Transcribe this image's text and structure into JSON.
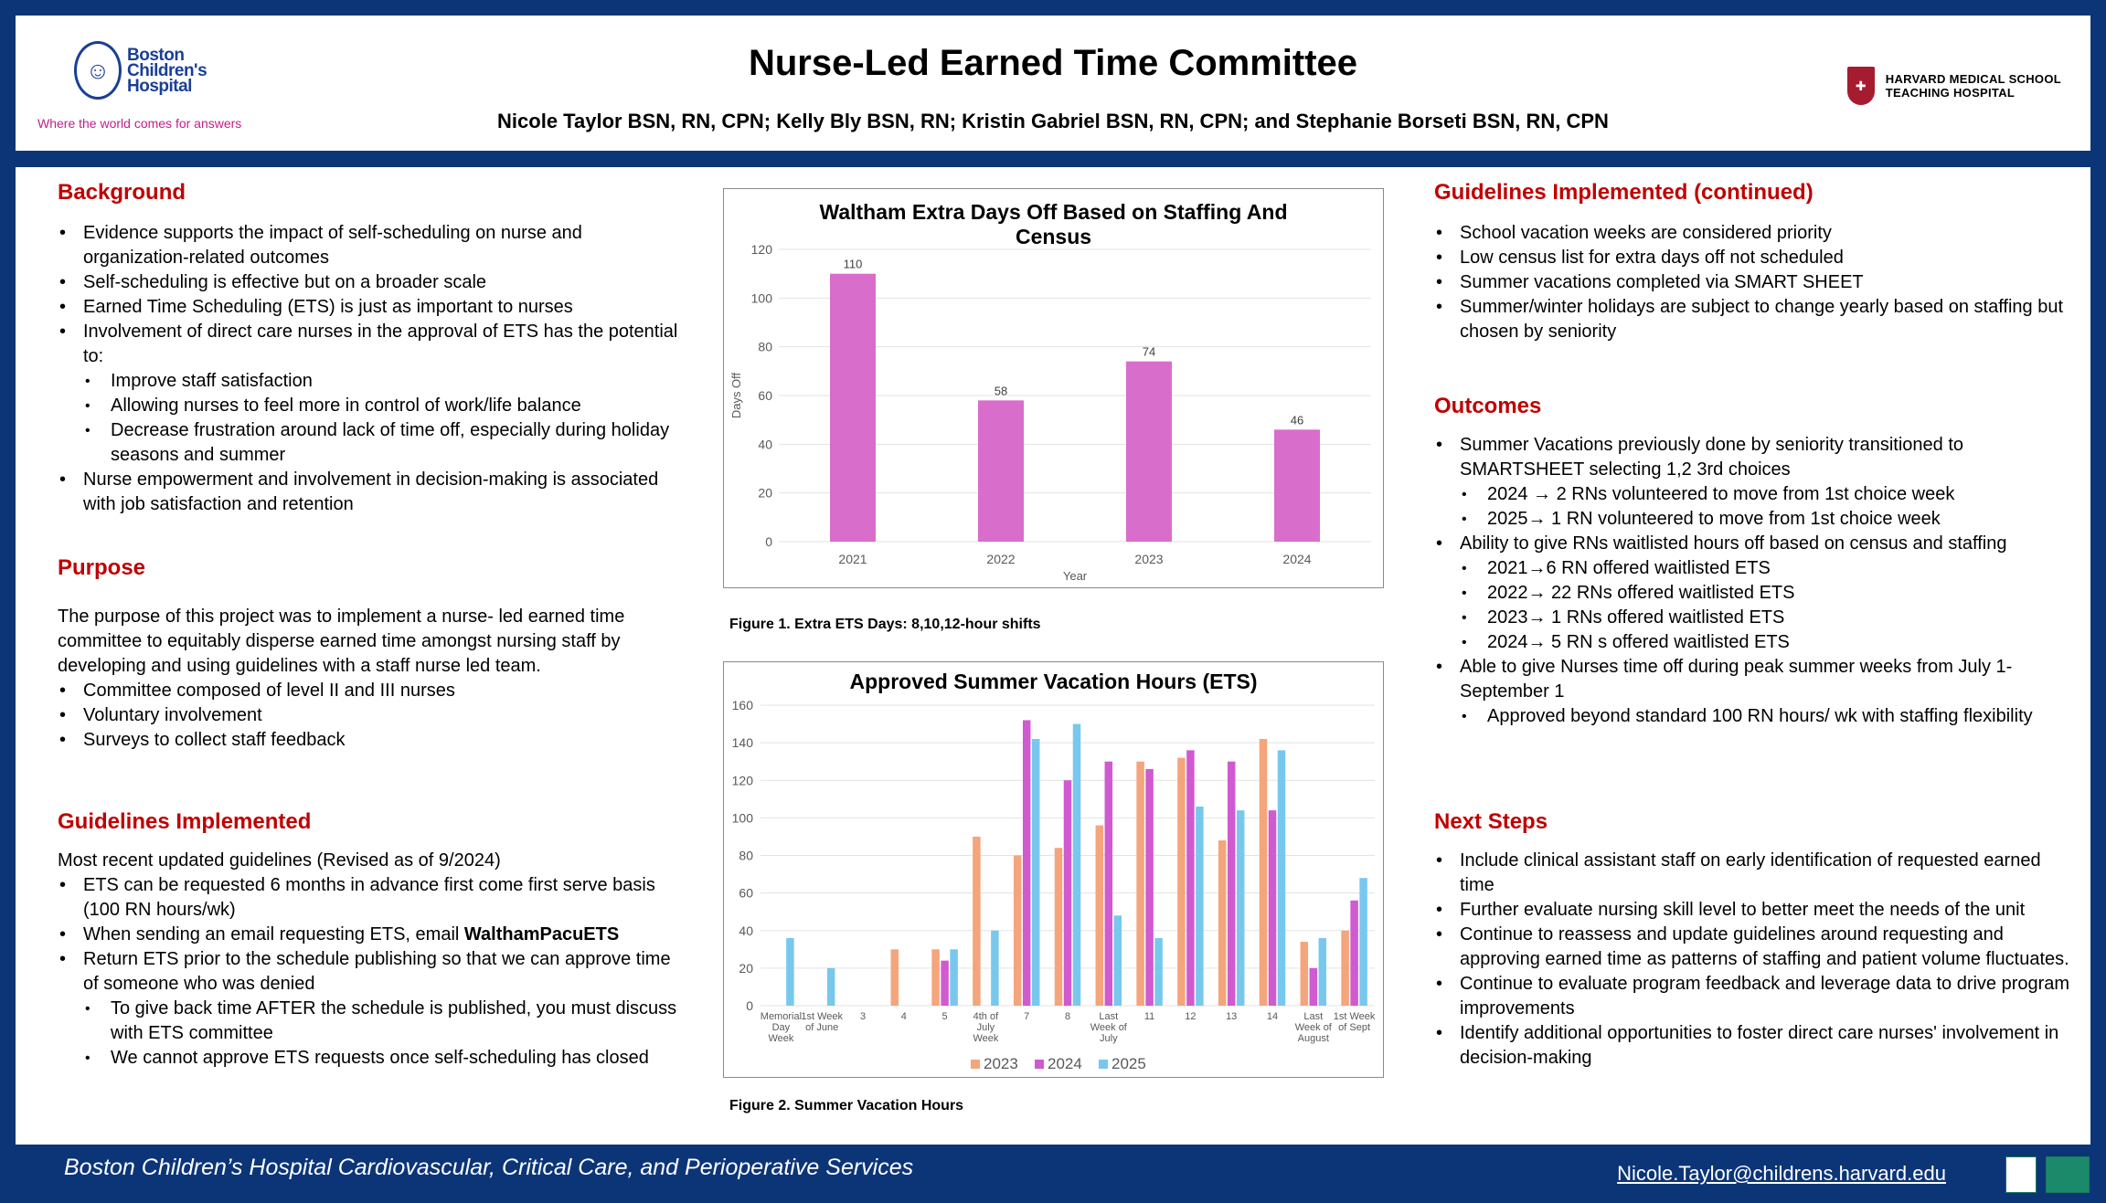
{
  "header": {
    "title": "Nurse-Led Earned Time Committee",
    "authors": "Nicole Taylor BSN, RN, CPN; Kelly Bly BSN, RN; Kristin Gabriel BSN, RN, CPN; and Stephanie Borseti BSN, RN, CPN",
    "logo_left": [
      "Boston",
      "Children's",
      "Hospital"
    ],
    "logo_tagline": "Where the world comes for answers",
    "logo_right": [
      "HARVARD MEDICAL SCHOOL",
      "TEACHING HOSPITAL"
    ]
  },
  "background": {
    "heading": "Background",
    "items": [
      "Evidence supports the impact of self-scheduling on nurse and organization-related outcomes",
      "Self-scheduling is effective but on a broader scale",
      "Earned Time Scheduling (ETS) is just as important to nurses",
      "Involvement of direct care nurses in the approval of ETS has the potential to:"
    ],
    "subitems": [
      "Improve staff satisfaction",
      "Allowing nurses to feel more in control of work/life balance",
      "Decrease frustration around lack of time off, especially during holiday seasons and summer"
    ],
    "last_item": "Nurse empowerment and involvement in decision-making is associated with job satisfaction and retention"
  },
  "purpose": {
    "heading": "Purpose",
    "text": "The purpose of this project was to implement a nurse- led earned time committee to equitably disperse earned time amongst nursing staff by developing and using guidelines with a staff nurse led team.",
    "items": [
      "Committee composed of level II and III nurses",
      "Voluntary involvement",
      "Surveys to collect staff feedback"
    ]
  },
  "guidelines": {
    "heading": "Guidelines Implemented",
    "intro": "Most recent updated guidelines (Revised as of 9/2024)",
    "item1": "ETS can be requested 6 months in advance first come first serve basis (100 RN hours/wk)",
    "item2_pre": "When sending an email requesting ETS, email ",
    "item2_bold": "WalthamPacuETS",
    "item3": "Return ETS prior to the schedule publishing so that we can approve time of someone who was denied",
    "subitems": [
      "To give back time AFTER the schedule is published, you must discuss with ETS committee",
      "We cannot approve ETS requests once self-scheduling has closed"
    ]
  },
  "guidelines_cont": {
    "heading": "Guidelines Implemented (continued)",
    "items": [
      "School vacation weeks are considered priority",
      "Low census list for extra days off not scheduled",
      "Summer vacations completed via SMART SHEET",
      "Summer/winter holidays are subject to change yearly based on staffing but chosen by seniority"
    ]
  },
  "outcomes": {
    "heading": "Outcomes",
    "item1": "Summer Vacations previously done by seniority transitioned to SMARTSHEET selecting 1,2 3rd choices",
    "sub1": [
      "2024 → 2 RNs volunteered to move from 1st choice week",
      "2025→ 1 RN volunteered to move from 1st choice week"
    ],
    "item2": "Ability to give RNs waitlisted hours off based on census and staffing",
    "sub2": [
      "2021→6 RN offered waitlisted ETS",
      "2022→ 22 RNs offered waitlisted ETS",
      "2023→ 1 RNs offered waitlisted ETS",
      "2024→ 5 RN s offered waitlisted ETS"
    ],
    "item3": "Able to give Nurses time off during peak summer weeks from July 1- September 1",
    "sub3": [
      "Approved beyond standard 100 RN hours/ wk with staffing flexibility"
    ]
  },
  "next_steps": {
    "heading": "Next Steps",
    "items": [
      "Include clinical assistant staff on early identification of requested earned time",
      "Further evaluate nursing skill level to better meet the needs of the unit",
      "Continue to reassess and update guidelines around requesting and approving earned time as patterns of staffing and patient volume fluctuates.",
      "Continue to evaluate program feedback and leverage data to drive program  improvements",
      "Identify additional opportunities to foster direct care nurses' involvement in decision-making"
    ]
  },
  "footer": {
    "left": "Boston Children’s Hospital Cardiovascular, Critical Care, and Perioperative Services",
    "email": "Nicole.Taylor@childrens.harvard.edu"
  },
  "captions": {
    "fig1": "Figure 1. Extra ETS Days: 8,10,12-hour shifts",
    "fig2": "Figure 2. Summer Vacation Hours"
  },
  "colors": {
    "brand_blue": "#0c3578",
    "heading_red": "#c00000",
    "bar1": "#d96dcc",
    "s2023": "#f4a57c",
    "s2024": "#d05ad0",
    "s2025": "#78c8ee"
  },
  "chart_data": [
    {
      "type": "bar",
      "title": "Waltham Extra Days Off Based on Staffing And Census",
      "xlabel": "Year",
      "ylabel": "Days Off",
      "categories": [
        "2021",
        "2022",
        "2023",
        "2024"
      ],
      "values": [
        110,
        58,
        74,
        46
      ],
      "data_labels": [
        "110",
        "58",
        "74",
        "46"
      ],
      "ylim": [
        0,
        120
      ],
      "yticks": [
        "0",
        "20",
        "40",
        "60",
        "80",
        "100",
        "120"
      ],
      "grid": true
    },
    {
      "type": "bar",
      "title": "Approved Summer Vacation Hours (ETS)",
      "categories": [
        [
          "Memorial",
          "Day",
          "Week"
        ],
        [
          "1st Week",
          "of June"
        ],
        [
          "3"
        ],
        [
          "4"
        ],
        [
          "5"
        ],
        [
          "4th of",
          "July",
          "Week"
        ],
        [
          "7"
        ],
        [
          "8"
        ],
        [
          "Last",
          "Week of",
          "July"
        ],
        [
          "11"
        ],
        [
          "12"
        ],
        [
          "13"
        ],
        [
          "14"
        ],
        [
          "Last",
          "Week of",
          "August"
        ],
        [
          "1st Week",
          "of Sept"
        ]
      ],
      "series": [
        {
          "name": "2023",
          "values": [
            0,
            0,
            0,
            30,
            30,
            90,
            80,
            84,
            96,
            130,
            132,
            88,
            142,
            34,
            40
          ]
        },
        {
          "name": "2024",
          "values": [
            0,
            0,
            0,
            0,
            24,
            0,
            152,
            120,
            130,
            126,
            136,
            130,
            104,
            20,
            56
          ]
        },
        {
          "name": "2025",
          "values": [
            36,
            20,
            0,
            0,
            30,
            40,
            142,
            150,
            48,
            36,
            106,
            104,
            136,
            36,
            68
          ]
        }
      ],
      "ylim": [
        0,
        160
      ],
      "yticks": [
        "0",
        "20",
        "40",
        "60",
        "80",
        "100",
        "120",
        "140",
        "160"
      ],
      "legend": "bottom",
      "grid": true
    }
  ]
}
